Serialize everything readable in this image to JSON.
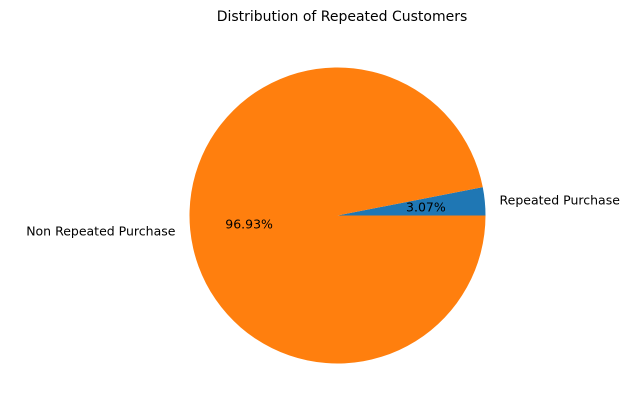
{
  "chart_data": {
    "type": "pie",
    "title": "Distribution of Repeated Customers",
    "slices": [
      {
        "label": "Repeated Purchase",
        "value": 3.07,
        "pct_label": "3.07%",
        "color": "#1f77b4"
      },
      {
        "label": "Non Repeated Purchase",
        "value": 96.93,
        "pct_label": "96.93%",
        "color": "#ff7f0e"
      }
    ],
    "start_angle_deg": 0,
    "direction": "counterclockwise"
  }
}
